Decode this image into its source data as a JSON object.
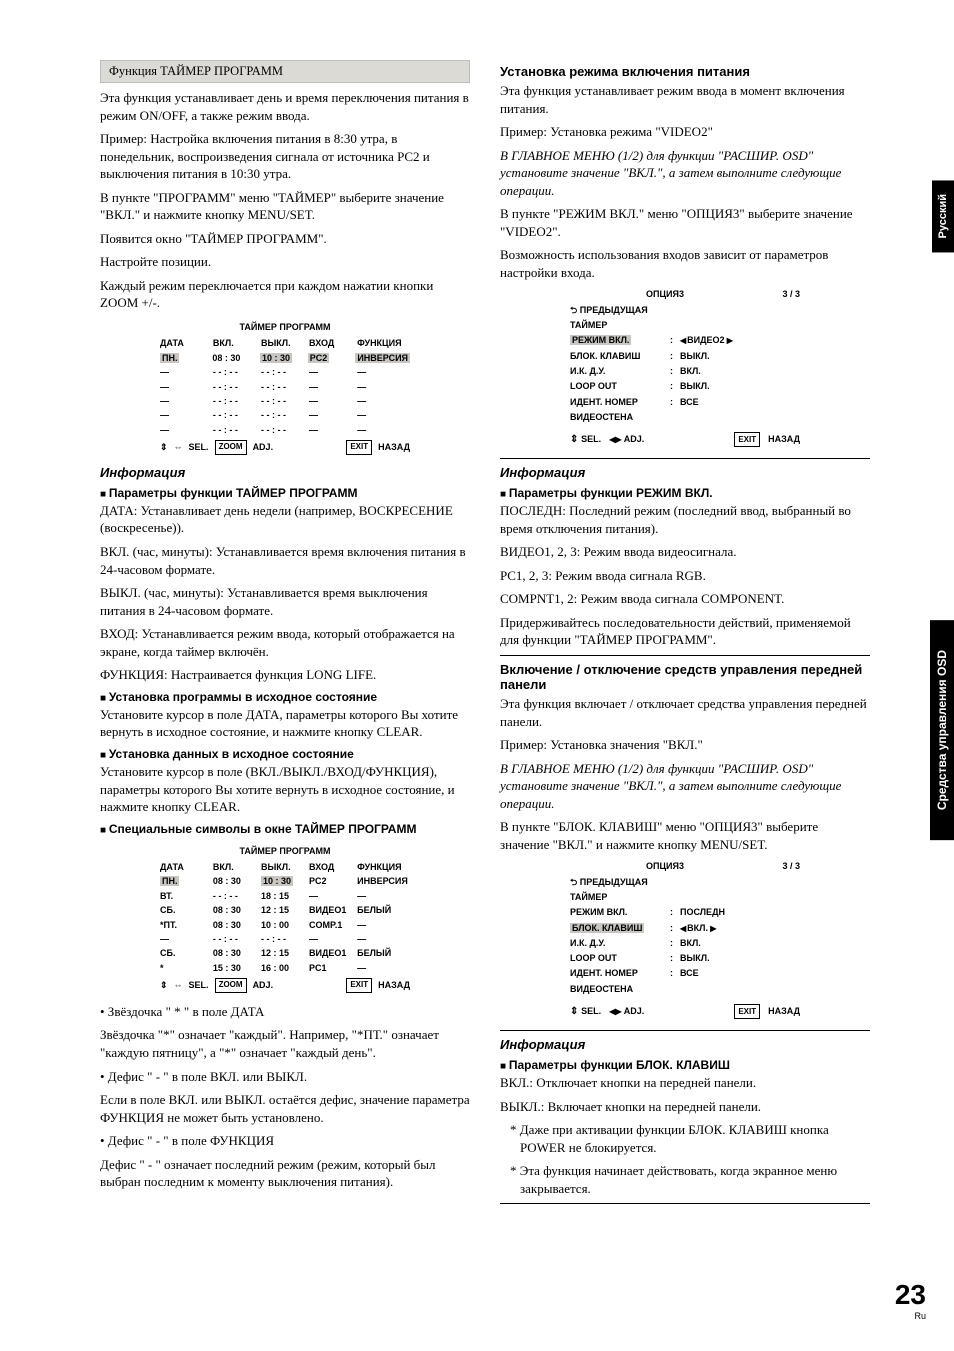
{
  "page_number": "23",
  "page_lang": "Ru",
  "side_tab_top": "Русский",
  "side_tab_mid": "Средства управления OSD",
  "left": {
    "grey_header": "Функция ТАЙМЕР ПРОГРАММ",
    "intro1": "Эта функция устанавливает день и время переключения питания в режим ON/OFF, а также режим ввода.",
    "intro2": "Пример: Настройка включения питания в 8:30 утра, в понедельник, воспроизведения сигнала от источника PC2 и выключения питания в 10:30 утра.",
    "step1": "В пункте \"ПРОГРАММ\" меню \"ТАЙМЕР\" выберите значение \"ВКЛ.\" и нажмите кнопку MENU/SET.",
    "step2": "Появится окно \"ТАЙМЕР ПРОГРАММ\".",
    "step3": "Настройте позиции.",
    "step4": "Каждый режим переключается при каждом нажатии кнопки ZOOM +/-.",
    "osd1": {
      "title": "ТАЙМЕР ПРОГРАММ",
      "headers": [
        "ДАТА",
        "ВКЛ.",
        "ВЫКЛ.",
        "ВХОД",
        "ФУНКЦИЯ"
      ],
      "row1": [
        "ПН.",
        "08 : 30",
        "10 : 30",
        "PC2",
        "ИНВЕРСИЯ"
      ],
      "blank_rows": 5,
      "blank_date": "—",
      "blank_time": "- - : - -",
      "blank_in": "—",
      "blank_fn": "—",
      "foot_sel": "SEL.",
      "foot_zoom": "ZOOM",
      "foot_adj": "ADJ.",
      "foot_exit": "EXIT",
      "foot_back": "НАЗАД"
    },
    "info_h": "Информация",
    "sub1": "Параметры функции ТАЙМЕР ПРОГРАММ",
    "p_date": "ДАТА: Устанавливает день недели (например, ВОСКРЕСЕНИЕ (воскресенье)).",
    "p_on": "ВКЛ. (час, минуты): Устанавливается время включения питания в 24-часовом формате.",
    "p_off": "ВЫКЛ. (час, минуты): Устанавливается время выключения питания в 24-часовом формате.",
    "p_in": "ВХОД: Устанавливается режим ввода, который отображается на экране, когда таймер включён.",
    "p_fn": "ФУНКЦИЯ: Настраивается функция LONG LIFE.",
    "sub2": "Установка программы в исходное состояние",
    "reset1": "Установите курсор в поле ДАТА, параметры которого Вы хотите вернуть в исходное состояние, и нажмите кнопку CLEAR.",
    "sub3": "Установка данных в исходное состояние",
    "reset2": "Установите курсор в поле (ВКЛ./ВЫКЛ./ВХОД/ФУНКЦИЯ), параметры которого Вы хотите вернуть в исходное состояние, и нажмите кнопку CLEAR.",
    "sub4": "Специальные символы в окне ТАЙМЕР ПРОГРАММ",
    "osd2": {
      "title": "ТАЙМЕР ПРОГРАММ",
      "headers": [
        "ДАТА",
        "ВКЛ.",
        "ВЫКЛ.",
        "ВХОД",
        "ФУНКЦИЯ"
      ],
      "rows": [
        [
          "ПН.",
          "08 : 30",
          "10 : 30",
          "PC2",
          "ИНВЕРСИЯ"
        ],
        [
          "ВТ.",
          "- - : - -",
          "18 : 15",
          "—",
          "—"
        ],
        [
          "СБ.",
          "08 : 30",
          "12 : 15",
          "ВИДЕО1",
          "БЕЛЫЙ"
        ],
        [
          "*ПТ.",
          "08 : 30",
          "10 : 00",
          "COMP.1",
          "—"
        ],
        [
          "—",
          "- - : - -",
          "- - : - -",
          "—",
          "—"
        ],
        [
          "СБ.",
          "08 : 30",
          "12 : 15",
          "ВИДЕО1",
          "БЕЛЫЙ"
        ],
        [
          "*",
          "15 : 30",
          "16 : 00",
          "PC1",
          "—"
        ]
      ]
    },
    "bullet_star_h": "• Звёздочка \" * \" в поле ДАТА",
    "bullet_star": "Звёздочка \"*\" означает \"каждый\". Например, \"*ПТ.\" означает \"каждую пятницу\", а \"*\" означает \"каждый день\".",
    "bullet_dash1_h": "• Дефис \" - \" в поле ВКЛ. или ВЫКЛ.",
    "bullet_dash1": "Если в поле ВКЛ. или ВЫКЛ. остаётся дефис, значение параметра ФУНКЦИЯ не может быть установлено.",
    "bullet_dash2_h": "• Дефис \" - \" в поле ФУНКЦИЯ",
    "bullet_dash2": "Дефис \" - \" означает последний режим (режим, который был выбран последним к моменту выключения питания)."
  },
  "right": {
    "h1": "Установка режима включения питания",
    "p1": "Эта функция устанавливает режим ввода в момент включения питания.",
    "p2": "Пример: Установка режима \"VIDEO2\"",
    "p3_ital": "В ГЛАВНОЕ МЕНЮ (1/2) для функции \"РАСШИР. OSD\" установите значение \"ВКЛ.\", а затем выполните следующие операции.",
    "p4": "В пункте \"РЕЖИМ ВКЛ.\" меню \"ОПЦИЯ3\" выберите значение \"VIDEO2\".",
    "p5": "Возможность использования входов зависит от параметров настройки входа.",
    "menu1": {
      "title": "ОПЦИЯ3",
      "page": "3 / 3",
      "prev": "ПРЕДЫДУЩАЯ",
      "rows": [
        [
          "ТАЙМЕР",
          "",
          ""
        ],
        [
          "РЕЖИМ ВКЛ.",
          ":",
          "ВИДЕО2"
        ],
        [
          "БЛОК. КЛАВИШ",
          ":",
          "ВЫКЛ."
        ],
        [
          "И.К. Д.У.",
          ":",
          "ВКЛ."
        ],
        [
          "LOOP OUT",
          ":",
          "ВЫКЛ."
        ],
        [
          "ИДЕНТ. НОМЕР",
          ":",
          "ВСЕ"
        ],
        [
          "ВИДЕОСТЕНА",
          "",
          ""
        ]
      ],
      "highlight_row": 1,
      "highlight_val_arrows": true,
      "foot_sel": "SEL.",
      "foot_adj": "ADJ.",
      "foot_exit": "EXIT",
      "foot_back": "НАЗАД"
    },
    "info_h": "Информация",
    "sub1": "Параметры функции РЕЖИМ ВКЛ.",
    "i1": "ПОСЛЕДН: Последний режим (последний ввод, выбранный во время отключения питания).",
    "i2": "ВИДЕО1, 2, 3: Режим ввода видеосигнала.",
    "i3": "PC1, 2, 3: Режим ввода сигнала RGB.",
    "i4": "COMPNT1, 2: Режим ввода сигнала COMPONENT.",
    "i5": "Придерживайтесь последовательности действий, применяемой для функции \"ТАЙМЕР ПРОГРАММ\".",
    "h2": "Включение / отключение средств управления передней панели",
    "p6": "Эта функция включает / отключает средства управления передней панели.",
    "p7": "Пример: Установка значения \"ВКЛ.\"",
    "p8_ital": "В ГЛАВНОЕ МЕНЮ (1/2) для функции \"РАСШИР. OSD\" установите значение \"ВКЛ.\", а затем выполните следующие операции.",
    "p9": "В пункте \"БЛОК. КЛАВИШ\" меню \"ОПЦИЯ3\" выберите значение \"ВКЛ.\" и нажмите кнопку MENU/SET.",
    "menu2": {
      "title": "ОПЦИЯ3",
      "page": "3 / 3",
      "prev": "ПРЕДЫДУЩАЯ",
      "rows": [
        [
          "ТАЙМЕР",
          "",
          ""
        ],
        [
          "РЕЖИМ ВКЛ.",
          ":",
          "ПОСЛЕДН"
        ],
        [
          "БЛОК. КЛАВИШ",
          ":",
          "ВКЛ."
        ],
        [
          "И.К. Д.У.",
          ":",
          "ВКЛ."
        ],
        [
          "LOOP OUT",
          ":",
          "ВЫКЛ."
        ],
        [
          "ИДЕНТ. НОМЕР",
          ":",
          "ВСЕ"
        ],
        [
          "ВИДЕОСТЕНА",
          "",
          ""
        ]
      ],
      "highlight_row": 2,
      "highlight_val_arrows": true
    },
    "info2_h": "Информация",
    "sub2": "Параметры функции БЛОК. КЛАВИШ",
    "bk1": "ВКЛ.: Отключает кнопки на передней панели.",
    "bk2": "ВЫКЛ.: Включает кнопки на передней панели.",
    "note1": "* Даже при активации функции БЛОК. КЛАВИШ кнопка POWER не блокируется.",
    "note2": "* Эта функция начинает действовать, когда экранное меню закрывается."
  }
}
